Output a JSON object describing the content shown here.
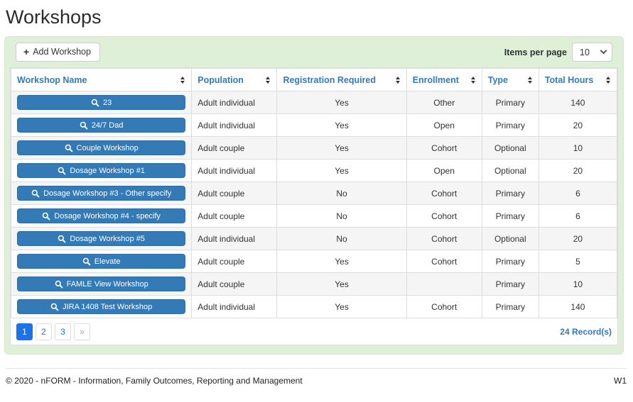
{
  "page": {
    "title": "Workshops"
  },
  "toolbar": {
    "add_button_label": "Add Workshop",
    "add_icon_glyph": "+",
    "items_per_page_label": "Items per page",
    "items_per_page_value": "10",
    "items_per_page_options": [
      "10"
    ]
  },
  "table": {
    "columns": [
      {
        "label": "Workshop Name"
      },
      {
        "label": "Population"
      },
      {
        "label": "Registration Required"
      },
      {
        "label": "Enrollment"
      },
      {
        "label": "Type"
      },
      {
        "label": "Total Hours"
      }
    ],
    "rows": [
      {
        "name": "23",
        "population": "Adult individual",
        "registration_required": "Yes",
        "enrollment": "Other",
        "type": "Primary",
        "total_hours": "140"
      },
      {
        "name": "24/7 Dad",
        "population": "Adult individual",
        "registration_required": "Yes",
        "enrollment": "Open",
        "type": "Primary",
        "total_hours": "20"
      },
      {
        "name": "Couple Workshop",
        "population": "Adult couple",
        "registration_required": "Yes",
        "enrollment": "Cohort",
        "type": "Optional",
        "total_hours": "10"
      },
      {
        "name": "Dosage Workshop #1",
        "population": "Adult individual",
        "registration_required": "Yes",
        "enrollment": "Open",
        "type": "Optional",
        "total_hours": "20"
      },
      {
        "name": "Dosage Workshop #3 - Other specify",
        "population": "Adult couple",
        "registration_required": "No",
        "enrollment": "Cohort",
        "type": "Primary",
        "total_hours": "6"
      },
      {
        "name": "Dosage Workshop #4 - specify",
        "population": "Adult couple",
        "registration_required": "No",
        "enrollment": "Cohort",
        "type": "Primary",
        "total_hours": "6"
      },
      {
        "name": "Dosage Workshop #5",
        "population": "Adult individual",
        "registration_required": "No",
        "enrollment": "Cohort",
        "type": "Optional",
        "total_hours": "20"
      },
      {
        "name": "Elevate",
        "population": "Adult couple",
        "registration_required": "Yes",
        "enrollment": "Cohort",
        "type": "Primary",
        "total_hours": "5"
      },
      {
        "name": "FAMLE View Workshop",
        "population": "Adult couple",
        "registration_required": "Yes",
        "enrollment": "",
        "type": "Primary",
        "total_hours": "10"
      },
      {
        "name": "JIRA 1408 Test Workshop",
        "population": "Adult individual",
        "registration_required": "Yes",
        "enrollment": "Cohort",
        "type": "Primary",
        "total_hours": "140"
      }
    ]
  },
  "pagination": {
    "pages": [
      {
        "label": "1",
        "active": true,
        "muted": false
      },
      {
        "label": "2",
        "active": false,
        "muted": false
      },
      {
        "label": "3",
        "active": false,
        "muted": false
      },
      {
        "label": "»",
        "active": false,
        "muted": true
      }
    ],
    "records_text": "24 Record(s)"
  },
  "footer": {
    "copyright": "© 2020 - nFORM - Information, Family Outcomes, Reporting and Management",
    "version": "W1"
  },
  "colors": {
    "accent_blue": "#337ab7",
    "active_page_blue": "#1a73e8",
    "panel_green": "#dff0d8",
    "row_stripe": "#f5f5f5"
  }
}
